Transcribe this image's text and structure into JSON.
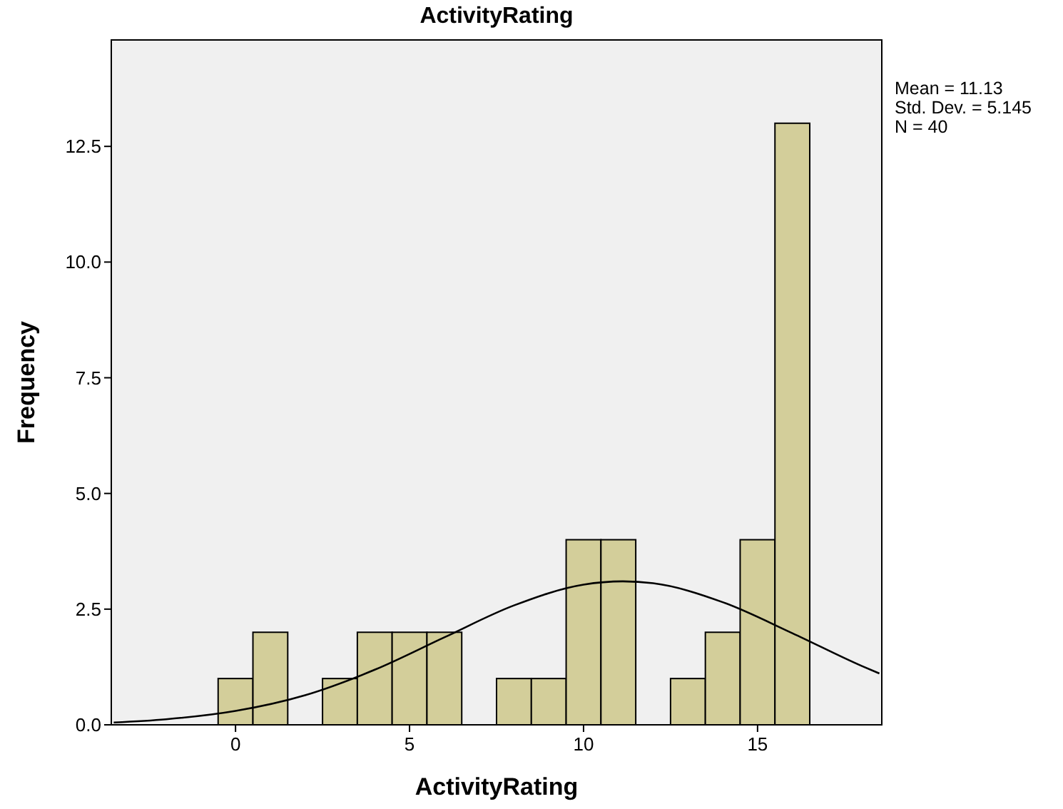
{
  "chart_data": {
    "type": "histogram",
    "title": "ActivityRating",
    "xlabel": "ActivityRating",
    "ylabel": "Frequency",
    "bins": [
      -0.5,
      0.5,
      1.5,
      2.5,
      3.5,
      4.5,
      5.5,
      6.5,
      7.5,
      8.5,
      9.5,
      10.5,
      11.5,
      12.5,
      13.5,
      14.5,
      15.5,
      16.5
    ],
    "values": [
      1,
      2,
      0,
      1,
      2,
      2,
      2,
      0,
      1,
      1,
      4,
      4,
      0,
      1,
      2,
      4,
      13
    ],
    "color": "#d3ce9a",
    "series": [
      {
        "type": "line",
        "color": "#000000",
        "x": [
          -3.5,
          -2,
          0,
          2,
          4,
          6,
          8,
          10,
          11.13,
          12,
          14,
          16,
          18,
          18.5
        ],
        "values": [
          0.05,
          0.12,
          0.3,
          0.64,
          1.19,
          1.89,
          2.58,
          3.03,
          3.1,
          3.06,
          2.65,
          1.98,
          1.27,
          1.11
        ]
      }
    ],
    "xlim": [
      -3.57,
      18.57
    ],
    "ylim": [
      0,
      14.8
    ],
    "xticks": [
      0,
      5,
      10,
      15
    ],
    "yticks": [
      {
        "value": 0,
        "label": "0.0"
      },
      {
        "value": 2.5,
        "label": "2.5"
      },
      {
        "value": 5,
        "label": "5.0"
      },
      {
        "value": 7.5,
        "label": "7.5"
      },
      {
        "value": 10,
        "label": "10.0"
      },
      {
        "value": 12.5,
        "label": "12.5"
      }
    ],
    "annotations": [
      "Mean = 11.13",
      "Std. Dev. = 5.145",
      "N = 40"
    ],
    "grid": false
  }
}
